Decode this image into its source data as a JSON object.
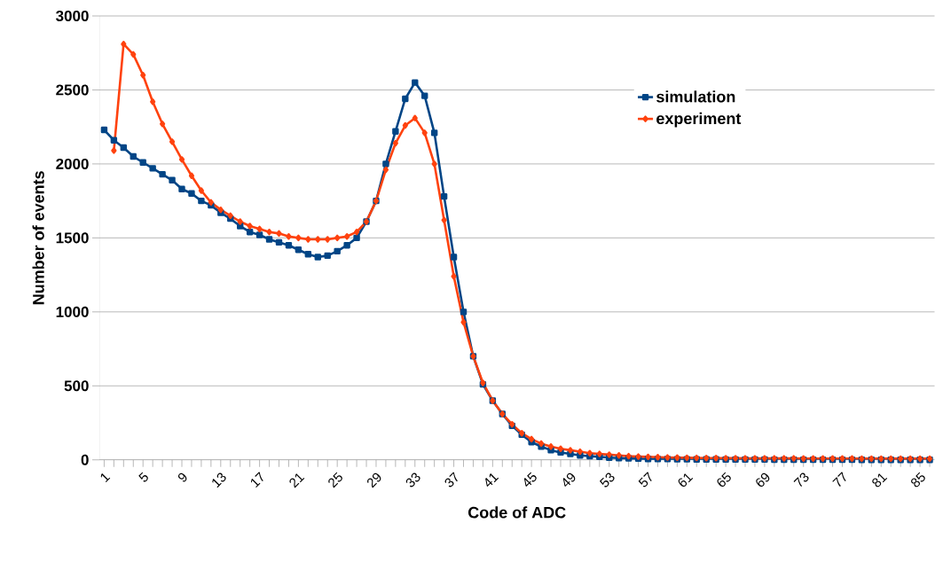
{
  "chart_data": {
    "type": "line",
    "xlabel": "Code of ADC",
    "ylabel": "Number of events",
    "categories": [
      "1",
      null,
      null,
      null,
      "5",
      null,
      null,
      null,
      "9",
      null,
      null,
      null,
      "13",
      null,
      null,
      null,
      "17",
      null,
      null,
      null,
      "21",
      null,
      null,
      null,
      "25",
      null,
      null,
      null,
      "29",
      null,
      null,
      null,
      "33",
      null,
      null,
      null,
      "37",
      null,
      null,
      null,
      "41",
      null,
      null,
      null,
      "45",
      null,
      null,
      null,
      "49",
      null,
      null,
      null,
      "53",
      null,
      null,
      null,
      "57",
      null,
      null,
      null,
      "61",
      null,
      null,
      null,
      "65",
      null,
      null,
      null,
      "69",
      null,
      null,
      null,
      "73",
      null,
      null,
      null,
      "77",
      null,
      null,
      null,
      "81",
      null,
      null,
      null,
      "85",
      null
    ],
    "series": [
      {
        "name": "simulation",
        "color": "#004586",
        "marker": "square",
        "values": [
          2230,
          2160,
          2110,
          2050,
          2010,
          1970,
          1930,
          1890,
          1830,
          1800,
          1750,
          1720,
          1670,
          1630,
          1580,
          1540,
          1520,
          1490,
          1470,
          1450,
          1420,
          1390,
          1370,
          1380,
          1410,
          1450,
          1500,
          1610,
          1750,
          2000,
          2220,
          2440,
          2550,
          2460,
          2210,
          1780,
          1370,
          1000,
          700,
          510,
          400,
          310,
          230,
          170,
          120,
          90,
          65,
          50,
          40,
          30,
          25,
          20,
          15,
          12,
          10,
          8,
          6,
          5,
          5,
          4,
          4,
          3,
          3,
          3,
          2,
          2,
          2,
          2,
          2,
          1,
          1,
          1,
          1,
          1,
          1,
          1,
          1,
          1,
          0,
          0,
          0,
          0,
          0,
          0,
          0,
          0
        ]
      },
      {
        "name": "experiment",
        "color": "#ff420e",
        "marker": "diamond",
        "values": [
          null,
          2090,
          2810,
          2740,
          2600,
          2420,
          2270,
          2150,
          2030,
          1920,
          1820,
          1740,
          1690,
          1650,
          1610,
          1580,
          1560,
          1540,
          1530,
          1510,
          1500,
          1490,
          1490,
          1490,
          1500,
          1510,
          1540,
          1610,
          1750,
          1960,
          2140,
          2260,
          2310,
          2210,
          2000,
          1620,
          1240,
          930,
          700,
          520,
          400,
          310,
          240,
          180,
          140,
          110,
          90,
          75,
          65,
          55,
          45,
          40,
          35,
          30,
          25,
          22,
          20,
          18,
          16,
          15,
          14,
          13,
          12,
          12,
          11,
          11,
          10,
          10,
          10,
          10,
          10,
          10,
          9,
          9,
          9,
          9,
          9,
          9,
          8,
          8,
          8,
          8,
          8,
          8,
          8,
          8
        ]
      }
    ],
    "ylim": [
      0,
      3000
    ],
    "yticks": [
      0,
      500,
      1000,
      1500,
      2000,
      2500,
      3000
    ],
    "grid": "y",
    "legend": "top right",
    "line_style": "solid"
  }
}
